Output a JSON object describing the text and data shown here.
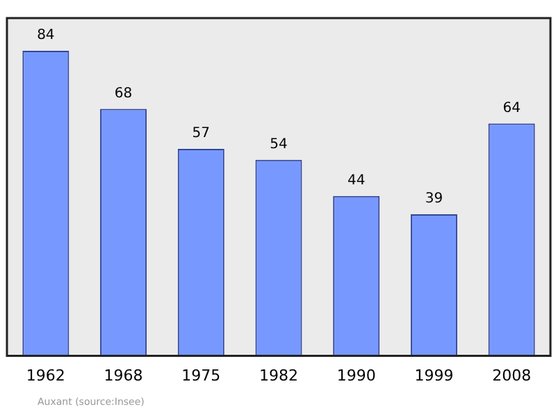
{
  "chart_data": {
    "type": "bar",
    "categories": [
      "1962",
      "1968",
      "1975",
      "1982",
      "1990",
      "1999",
      "2008"
    ],
    "values": [
      84,
      68,
      57,
      54,
      44,
      39,
      64
    ],
    "color": "#7799ff",
    "ylim": [
      0,
      93
    ],
    "tick_labels": "x",
    "grid": false,
    "legend": false,
    "data_labels": true,
    "annotations": [
      "Auxant   (source:Insee)"
    ]
  }
}
